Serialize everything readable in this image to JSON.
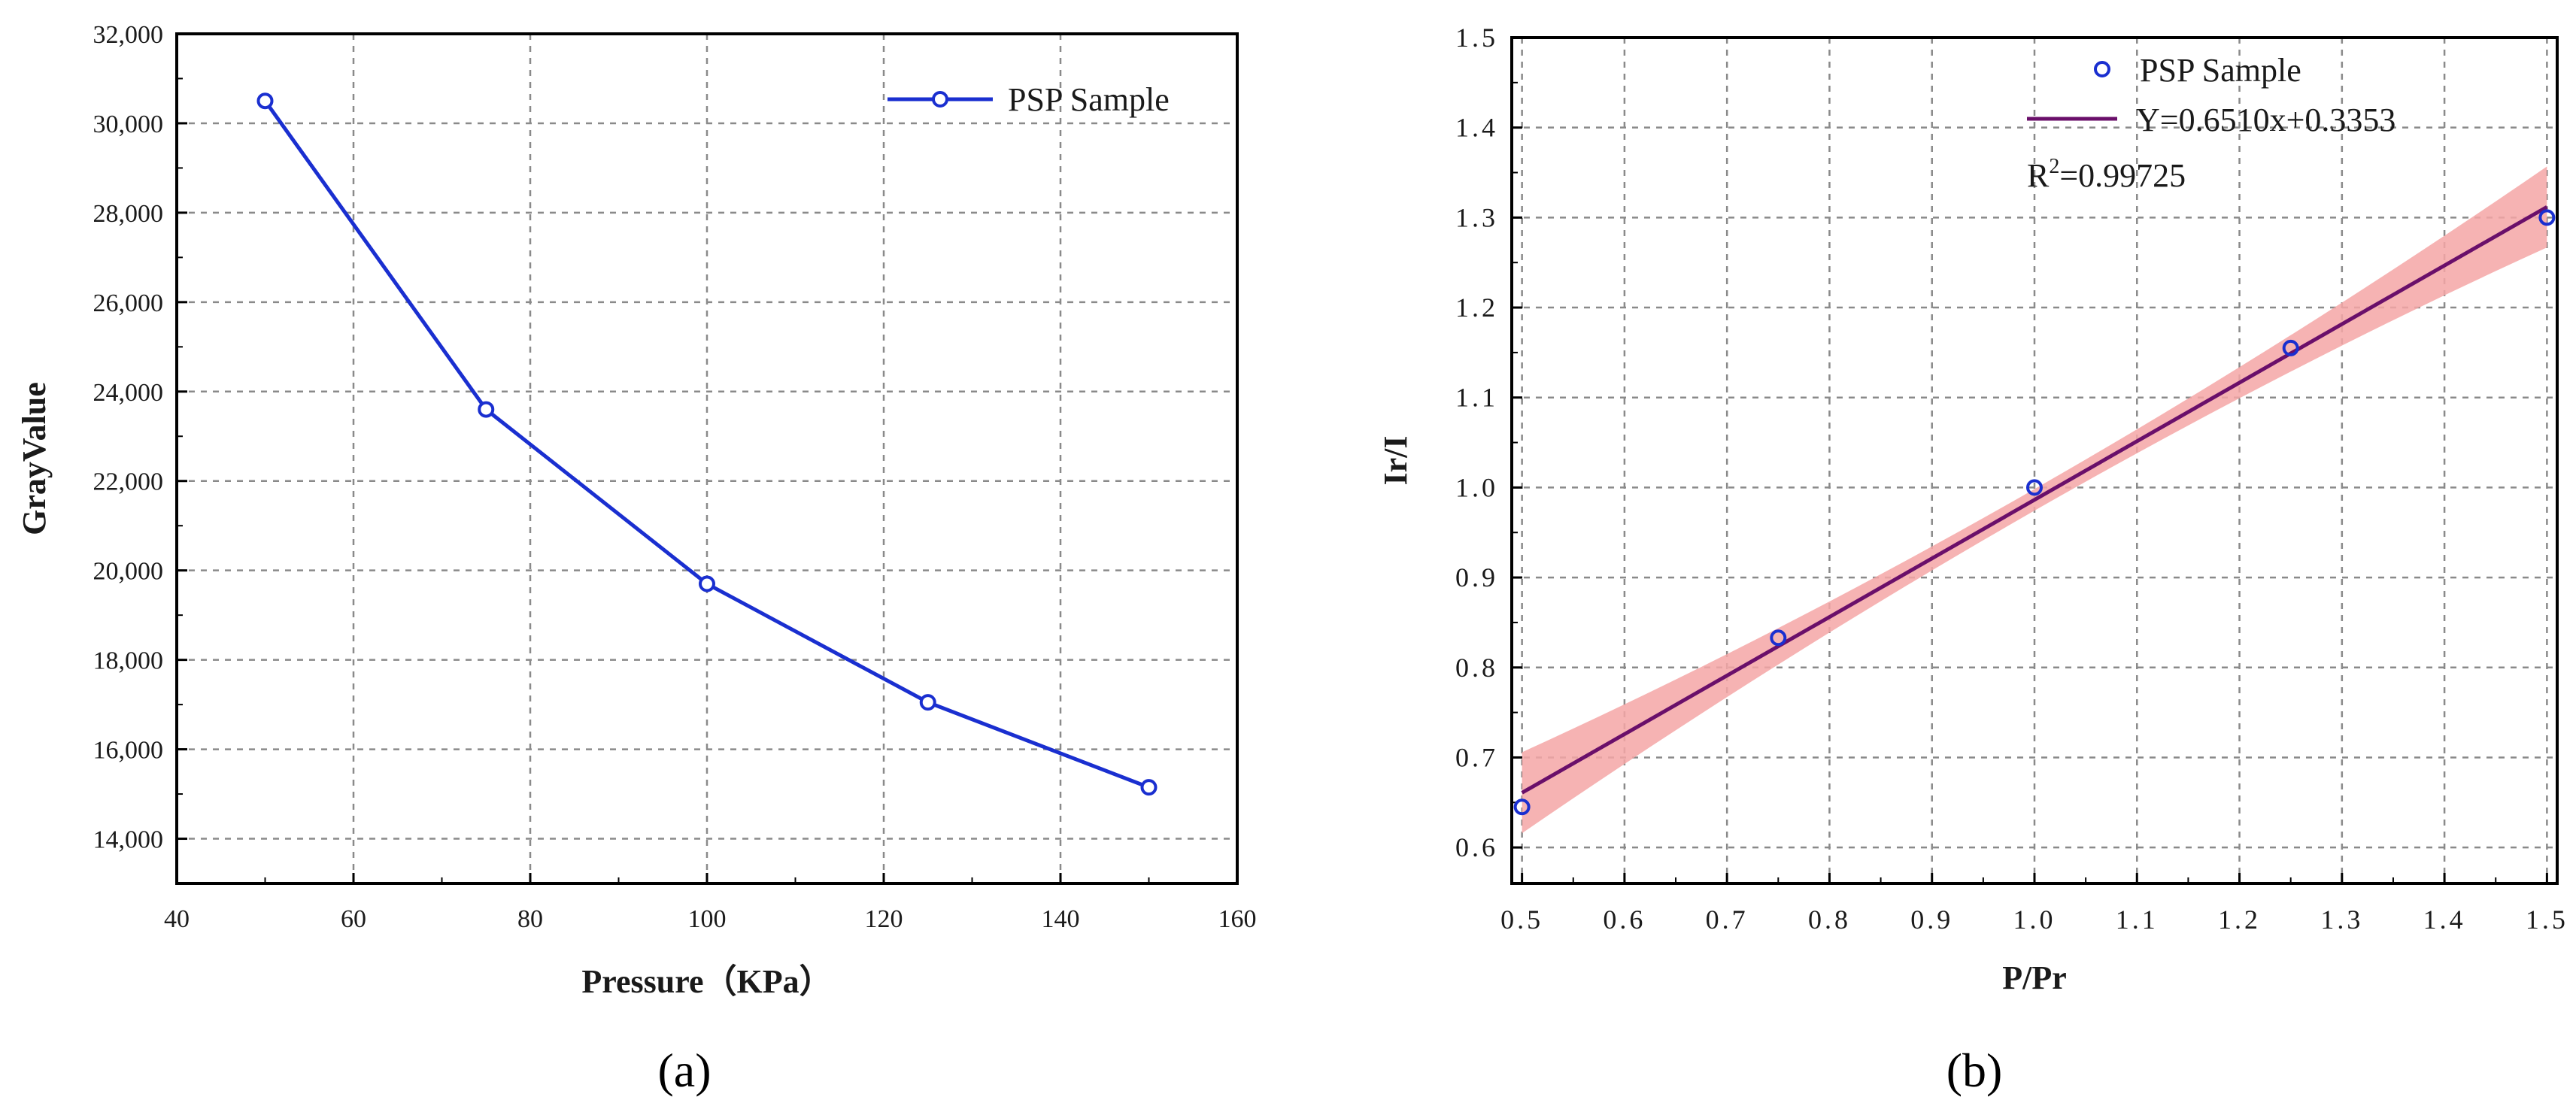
{
  "chart_data": [
    {
      "type": "line",
      "panel_label": "(a)",
      "xlabel": "Pressure（KPa）",
      "ylabel": "GrayValue",
      "xlim": [
        40,
        160
      ],
      "ylim": [
        13000,
        32000
      ],
      "x_ticks": [
        40,
        60,
        80,
        100,
        120,
        140,
        160
      ],
      "y_ticks": [
        14000,
        16000,
        18000,
        20000,
        22000,
        24000,
        26000,
        28000,
        30000,
        32000
      ],
      "x_tick_labels": [
        "40",
        "60",
        "80",
        "100",
        "120",
        "140",
        "160"
      ],
      "y_tick_labels": [
        "14,000",
        "16,000",
        "18,000",
        "20,000",
        "22,000",
        "24,000",
        "26,000",
        "28,000",
        "30,000",
        "32,000"
      ],
      "grid": true,
      "legend_position": "top-right",
      "series": [
        {
          "name": "PSP Sample",
          "color": "#1a2fd0",
          "x": [
            50,
            75,
            100,
            125,
            150
          ],
          "y": [
            30500,
            23600,
            19700,
            17050,
            15150
          ]
        }
      ]
    },
    {
      "type": "scatter",
      "panel_label": "(b)",
      "xlabel": "P/Pr",
      "ylabel": "Ir/I",
      "xlim": [
        0.49,
        1.51
      ],
      "ylim": [
        0.56,
        1.5
      ],
      "x_ticks": [
        0.5,
        0.6,
        0.7,
        0.8,
        0.9,
        1.0,
        1.1,
        1.2,
        1.3,
        1.4,
        1.5
      ],
      "y_ticks": [
        0.6,
        0.7,
        0.8,
        0.9,
        1.0,
        1.1,
        1.2,
        1.3,
        1.4,
        1.5
      ],
      "x_tick_labels": [
        "0.5",
        "0.6",
        "0.7",
        "0.8",
        "0.9",
        "1.0",
        "1.1",
        "1.2",
        "1.3",
        "1.4",
        "1.5"
      ],
      "y_tick_labels": [
        "0.6",
        "0.7",
        "0.8",
        "0.9",
        "1.0",
        "1.1",
        "1.2",
        "1.3",
        "1.4",
        "1.5"
      ],
      "grid": true,
      "legend_position": "top-right",
      "series": [
        {
          "name": "PSP Sample",
          "color": "#1a2fd0",
          "x": [
            0.5,
            0.75,
            1.0,
            1.25,
            1.5
          ],
          "y": [
            0.645,
            0.833,
            1.0,
            1.155,
            1.3
          ]
        }
      ],
      "fit": {
        "label": "Y=0.6510x+0.3353",
        "slope": 0.651,
        "intercept": 0.3353,
        "x_range": [
          0.5,
          1.5
        ],
        "band_halfwidth_at_ends": 0.045,
        "band_halfwidth_at_mid": 0.012,
        "line_color": "#6a0f6a",
        "band_color": "#f4a6a6"
      },
      "r2_label": {
        "prefix": "R",
        "sup": "2",
        "value": "=0.99725",
        "color": "#1a4fd0"
      }
    }
  ]
}
